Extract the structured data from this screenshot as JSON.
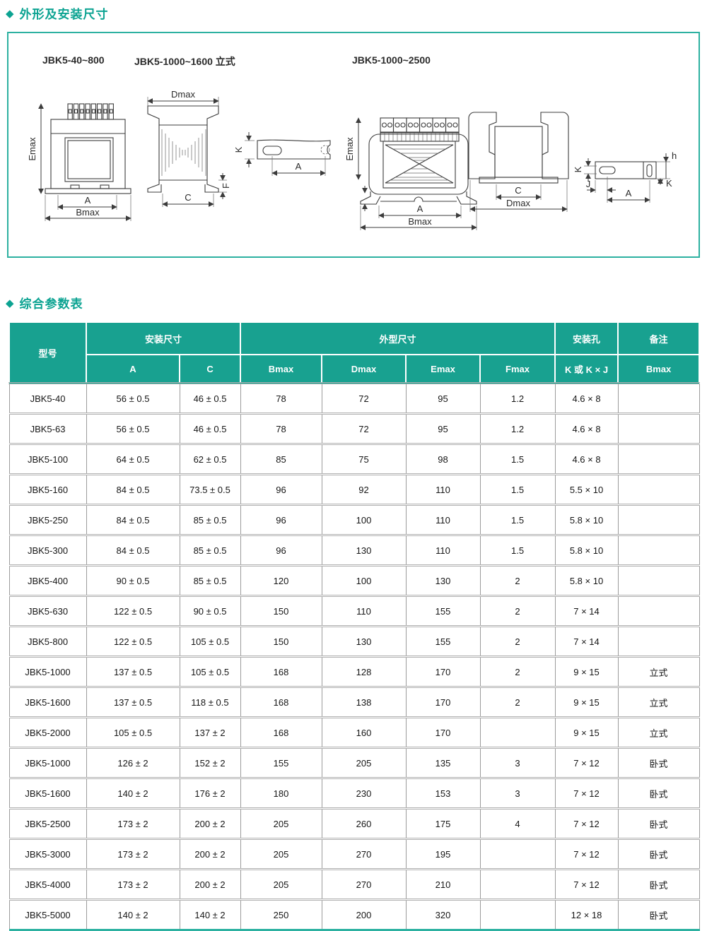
{
  "page": {
    "bullet": "◆",
    "section1_title": "外形及安装尺寸",
    "section2_title": "综合参数表"
  },
  "diagrams": {
    "captions": [
      "JBK5-40~800",
      "JBK5-1000~1600 立式",
      "JBK5-1000~2500"
    ],
    "labels": {
      "emax": "Emax",
      "a": "A",
      "bmax": "Bmax",
      "dmax": "Dmax",
      "c": "C",
      "f": "F",
      "k": "K",
      "j": "J",
      "h": "h"
    }
  },
  "table": {
    "header": {
      "model": "型号",
      "install_dims": "安装尺寸",
      "outline_dims": "外型尺寸",
      "mount_hole": "安装孔",
      "remarks": "备注",
      "sub": [
        "A",
        "C",
        "Bmax",
        "Dmax",
        "Emax",
        "Fmax",
        "K 或 K × J",
        "Bmax"
      ]
    },
    "rows": [
      [
        "JBK5-40",
        "56 ± 0.5",
        "46 ± 0.5",
        "78",
        "72",
        "95",
        "1.2",
        "4.6 × 8",
        ""
      ],
      [
        "JBK5-63",
        "56 ± 0.5",
        "46 ± 0.5",
        "78",
        "72",
        "95",
        "1.2",
        "4.6 × 8",
        ""
      ],
      [
        "JBK5-100",
        "64 ± 0.5",
        "62 ± 0.5",
        "85",
        "75",
        "98",
        "1.5",
        "4.6 × 8",
        ""
      ],
      [
        "JBK5-160",
        "84 ± 0.5",
        "73.5 ± 0.5",
        "96",
        "92",
        "110",
        "1.5",
        "5.5 × 10",
        ""
      ],
      [
        "JBK5-250",
        "84 ± 0.5",
        "85 ± 0.5",
        "96",
        "100",
        "110",
        "1.5",
        "5.8 × 10",
        ""
      ],
      [
        "JBK5-300",
        "84 ± 0.5",
        "85 ± 0.5",
        "96",
        "130",
        "110",
        "1.5",
        "5.8 × 10",
        ""
      ],
      [
        "JBK5-400",
        "90 ± 0.5",
        "85 ± 0.5",
        "120",
        "100",
        "130",
        "2",
        "5.8 × 10",
        ""
      ],
      [
        "JBK5-630",
        "122 ± 0.5",
        "90 ± 0.5",
        "150",
        "110",
        "155",
        "2",
        "7 × 14",
        ""
      ],
      [
        "JBK5-800",
        "122 ± 0.5",
        "105 ± 0.5",
        "150",
        "130",
        "155",
        "2",
        "7 × 14",
        ""
      ],
      [
        "JBK5-1000",
        "137 ± 0.5",
        "105 ± 0.5",
        "168",
        "128",
        "170",
        "2",
        "9 × 15",
        "立式"
      ],
      [
        "JBK5-1600",
        "137 ± 0.5",
        "118 ± 0.5",
        "168",
        "138",
        "170",
        "2",
        "9 × 15",
        "立式"
      ],
      [
        "JBK5-2000",
        "105 ± 0.5",
        "137 ± 2",
        "168",
        "160",
        "170",
        "",
        "9 × 15",
        "立式"
      ],
      [
        "JBK5-1000",
        "126 ± 2",
        "152 ± 2",
        "155",
        "205",
        "135",
        "3",
        "7 × 12",
        "卧式"
      ],
      [
        "JBK5-1600",
        "140 ± 2",
        "176 ± 2",
        "180",
        "230",
        "153",
        "3",
        "7 × 12",
        "卧式"
      ],
      [
        "JBK5-2500",
        "173 ± 2",
        "200 ± 2",
        "205",
        "260",
        "175",
        "4",
        "7 × 12",
        "卧式"
      ],
      [
        "JBK5-3000",
        "173 ± 2",
        "200 ± 2",
        "205",
        "270",
        "195",
        "",
        "7 × 12",
        "卧式"
      ],
      [
        "JBK5-4000",
        "173 ± 2",
        "200 ± 2",
        "205",
        "270",
        "210",
        "",
        "7 × 12",
        "卧式"
      ],
      [
        "JBK5-5000",
        "140 ± 2",
        "140 ± 2",
        "250",
        "200",
        "320",
        "",
        "12 × 18",
        "卧式"
      ]
    ]
  },
  "colors": {
    "teal_accent": "#0ca392",
    "header_bg": "#18a190",
    "panel_border": "#2db1a1"
  }
}
